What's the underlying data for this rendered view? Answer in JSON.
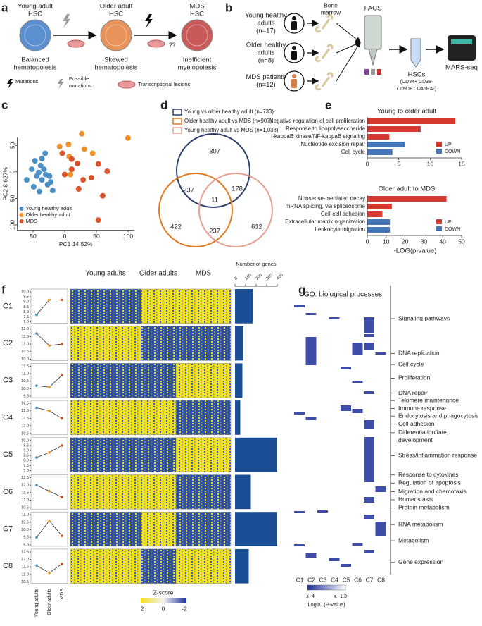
{
  "panel_labels": [
    "a",
    "b",
    "c",
    "d",
    "e",
    "f",
    "g"
  ],
  "panel_a": {
    "stages": [
      {
        "title": [
          "Young adult",
          "HSC"
        ],
        "outcome": [
          "Balanced",
          "hematopoiesis"
        ],
        "color": "#5b8fd0"
      },
      {
        "title": [
          "Older adult",
          "HSC"
        ],
        "outcome": [
          "Skewed",
          "hematopoiesis"
        ],
        "color": "#e8935a"
      },
      {
        "title": [
          "MDS",
          "HSC"
        ],
        "outcome": [
          "Inefficient",
          "myelopoiesis"
        ],
        "color": "#c95a5a"
      }
    ],
    "uncertain": "??",
    "legend": [
      [
        "Mutations"
      ],
      [
        "Possible",
        "mutations"
      ],
      [
        "Transcriptional lesions"
      ]
    ]
  },
  "panel_b": {
    "groups": [
      {
        "name": [
          "Young healthy",
          "adults"
        ],
        "n": "(n=17)"
      },
      {
        "name": [
          "Older healthy",
          "adults"
        ],
        "n": "(n=8)"
      },
      {
        "name": [
          "MDS patients"
        ],
        "n": "(n=12)"
      }
    ],
    "bone_marrow": [
      "Bone",
      "marrow"
    ],
    "facs": "FACS",
    "hscs": [
      "HSCs",
      "(CD34+ CD38-",
      "CD90+ CD45RA-)"
    ],
    "sequencing": "MARS-seq"
  },
  "chart_data": [
    {
      "type": "scatter",
      "xlabel": "PC1 14.52%",
      "ylabel": "PC2 8.627%",
      "xlim": [
        -75,
        110
      ],
      "ylim": [
        -110,
        65
      ],
      "xticks": [
        {
          "value": -50,
          "label": "50"
        },
        0,
        50,
        100
      ],
      "yticks": [
        50,
        0,
        {
          "value": -50,
          "label": "50"
        },
        {
          "value": -100,
          "label": "100"
        }
      ],
      "series": [
        {
          "name": "Young healthy adult",
          "color": "#4a90c4",
          "x": [
            -60,
            -52,
            -47,
            -44,
            -41,
            -38,
            -36,
            -33,
            -30,
            -27,
            -24,
            -22,
            -49,
            -40,
            -31,
            -36,
            -19
          ],
          "values": [
            -15,
            5,
            21,
            -8,
            -1,
            12,
            -15,
            5,
            -5,
            -24,
            -8,
            -19,
            -28,
            -37,
            35,
            25,
            -35
          ]
        },
        {
          "name": "Older healthy adult",
          "color": "#f0922b",
          "x": [
            -8,
            6,
            27,
            31,
            44,
            7,
            9,
            100
          ],
          "values": [
            48,
            52,
            72,
            43,
            35,
            29,
            -5,
            64
          ]
        },
        {
          "name": "MDS",
          "color": "#d9532c",
          "x": [
            -4,
            0,
            11,
            20,
            42,
            53,
            67,
            60,
            22,
            29,
            53,
            11
          ],
          "values": [
            35,
            -5,
            5,
            16,
            -11,
            15,
            1,
            -45,
            -32,
            -15,
            -91,
            24
          ]
        }
      ]
    },
    {
      "type": "venn",
      "sets": [
        {
          "name": "Young vs older healthy adult (n=733)",
          "color": "#2c3e6b"
        },
        {
          "name": "Older healthy adult vs MDS (n=907)",
          "color": "#e07b20"
        },
        {
          "name": "Young healthy adult vs MDS (n=1,038)",
          "color": "#e8a090"
        }
      ],
      "regions": [
        307,
        237,
        11,
        178,
        422,
        237,
        612
      ]
    },
    {
      "type": "hbar",
      "title": "Young to older adult",
      "categories": [
        "Negative regulation of cell proliferation",
        "Response to lipopolysaccharide",
        "I-kappaB kinase/NF-kappaB signaling",
        "Nucleotide excision repair",
        "Cell cycle"
      ],
      "series": [
        {
          "name": "UP",
          "color": "#d43a2f",
          "values": [
            14,
            8.5,
            3.5,
            null,
            null
          ]
        },
        {
          "name": "DOWN",
          "color": "#4577b8",
          "values": [
            null,
            null,
            null,
            6,
            4
          ]
        }
      ],
      "xlim": [
        0,
        15
      ],
      "xticks": [
        0,
        5,
        10,
        15
      ]
    },
    {
      "type": "hbar",
      "title": "Older adult to MDS",
      "xlabel": "-LOG(p-value)",
      "categories": [
        "Nonsense-mediated decay",
        "mRNA splicing, via spliceosome",
        "Cell-cell adhesion",
        "Extracellular matrix organization",
        "Leukocyte migration"
      ],
      "series": [
        {
          "name": "UP",
          "color": "#d43a2f",
          "values": [
            42,
            13,
            8,
            null,
            null
          ]
        },
        {
          "name": "DOWN",
          "color": "#4577b8",
          "values": [
            null,
            null,
            null,
            12,
            12
          ]
        }
      ],
      "xlim": [
        0,
        50
      ],
      "xticks": [
        0,
        10,
        20,
        30,
        40,
        50
      ]
    },
    {
      "type": "clusters",
      "categories": [
        "Young adults",
        "Older adults",
        "MDS"
      ],
      "line_color": "#333",
      "point_colors": [
        "#4a90c4",
        "#f0922b",
        "#d9532c"
      ],
      "heatmap_columns": [
        "Young adults",
        "Older adults",
        "MDS"
      ],
      "clusters": [
        {
          "name": "C1",
          "values": [
            7.7,
            9.2,
            9.2
          ],
          "ylim": [
            7,
            10
          ],
          "yticks": [
            {
              "value": 7,
              "label": "7.0"
            },
            7.5,
            {
              "value": 8,
              "label": "8.0"
            },
            8.5,
            {
              "value": 9,
              "label": "9.0"
            },
            9.5,
            {
              "value": 10,
              "label": "10.0"
            }
          ]
        },
        {
          "name": "C2",
          "values": [
            11.7,
            10.9,
            11.0
          ],
          "ylim": [
            10,
            12
          ],
          "yticks": [
            {
              "value": 10,
              "label": "10.0"
            },
            10.5,
            {
              "value": 11,
              "label": "11.0"
            },
            11.5,
            {
              "value": 12,
              "label": "12.0"
            }
          ]
        },
        {
          "name": "C3",
          "values": [
            10.2,
            10.1,
            10.9
          ],
          "ylim": [
            9.5,
            11.5
          ],
          "yticks": [
            9.5,
            {
              "value": 10,
              "label": "10.0"
            },
            10.5,
            {
              "value": 11,
              "label": "11.0"
            },
            11.5
          ]
        },
        {
          "name": "C4",
          "values": [
            12.2,
            12.0,
            11.5
          ],
          "ylim": [
            10.5,
            12.5
          ],
          "yticks": [
            10.5,
            {
              "value": 11,
              "label": "11.0"
            },
            11.5,
            {
              "value": 12,
              "label": "12.0"
            },
            12.5
          ]
        },
        {
          "name": "C5",
          "values": [
            8.3,
            8.8,
            9.5
          ],
          "ylim": [
            7,
            10
          ],
          "yticks": [
            {
              "value": 7,
              "label": "7.0"
            },
            7.5,
            {
              "value": 8,
              "label": "8.0"
            },
            8.5,
            {
              "value": 9,
              "label": "9.0"
            },
            9.5,
            {
              "value": 10,
              "label": "10.0"
            }
          ]
        },
        {
          "name": "C6",
          "values": [
            12.0,
            11.6,
            11.2
          ],
          "ylim": [
            10.5,
            12.5
          ],
          "yticks": [
            10.5,
            {
              "value": 11,
              "label": "11.0"
            },
            11.5,
            {
              "value": 12,
              "label": "12.0"
            },
            12.5
          ]
        },
        {
          "name": "C7",
          "values": [
            9.5,
            10.6,
            9.6
          ],
          "ylim": [
            9,
            11
          ],
          "yticks": [
            {
              "value": 9,
              "label": "9.0"
            },
            9.5,
            {
              "value": 10,
              "label": "10.0"
            },
            10.5,
            {
              "value": 11,
              "label": "11.0"
            }
          ]
        },
        {
          "name": "C8",
          "values": [
            11.6,
            11.1,
            11.7
          ],
          "ylim": [
            10.5,
            12.5
          ],
          "yticks": [
            10.5,
            {
              "value": 11,
              "label": "11.0"
            },
            11.5,
            {
              "value": 12,
              "label": "12.0"
            },
            12.5
          ]
        }
      ],
      "gene_count": {
        "title": "Number of genes",
        "color": "#1c4e96",
        "values": [
          170,
          80,
          70,
          50,
          400,
          150,
          400,
          130
        ],
        "xlim": [
          0,
          400
        ],
        "xticks": [
          0,
          100,
          200,
          300,
          400
        ]
      },
      "zscore": {
        "title": "Z-score",
        "ticks": [
          2,
          0,
          -2
        ]
      }
    },
    {
      "type": "go_heatmap",
      "title": "GO: biological processes",
      "columns": [
        "C1",
        "C2",
        "C3",
        "C4",
        "C5",
        "C6",
        "C7",
        "C8"
      ],
      "rows": [
        [
          "Signaling pathways"
        ],
        [
          "DNA replication"
        ],
        [
          "Cell cycle"
        ],
        [
          "Proliferation"
        ],
        [
          "DNA repair"
        ],
        [
          "Telomere maintenance"
        ],
        [
          "Immune response"
        ],
        [
          "Endocytosis and phagocytosis"
        ],
        [
          "Cell adhesion"
        ],
        [
          "Differentiation/fate,",
          "development"
        ],
        [
          "Stress/inflammation response"
        ],
        [
          "Response to cytokines"
        ],
        [
          "Regulation of apoptosis"
        ],
        [
          "Migration and chemotaxis"
        ],
        [
          "Homeostasis"
        ],
        [
          "Protein metabolism"
        ],
        [
          "RNA metabolism"
        ],
        [
          "Metabolism"
        ],
        [
          "Gene expression"
        ]
      ],
      "colorbar": {
        "low": "≤ -4",
        "high": "≥ -1.3",
        "title": "Log10 (P-value)"
      }
    }
  ]
}
